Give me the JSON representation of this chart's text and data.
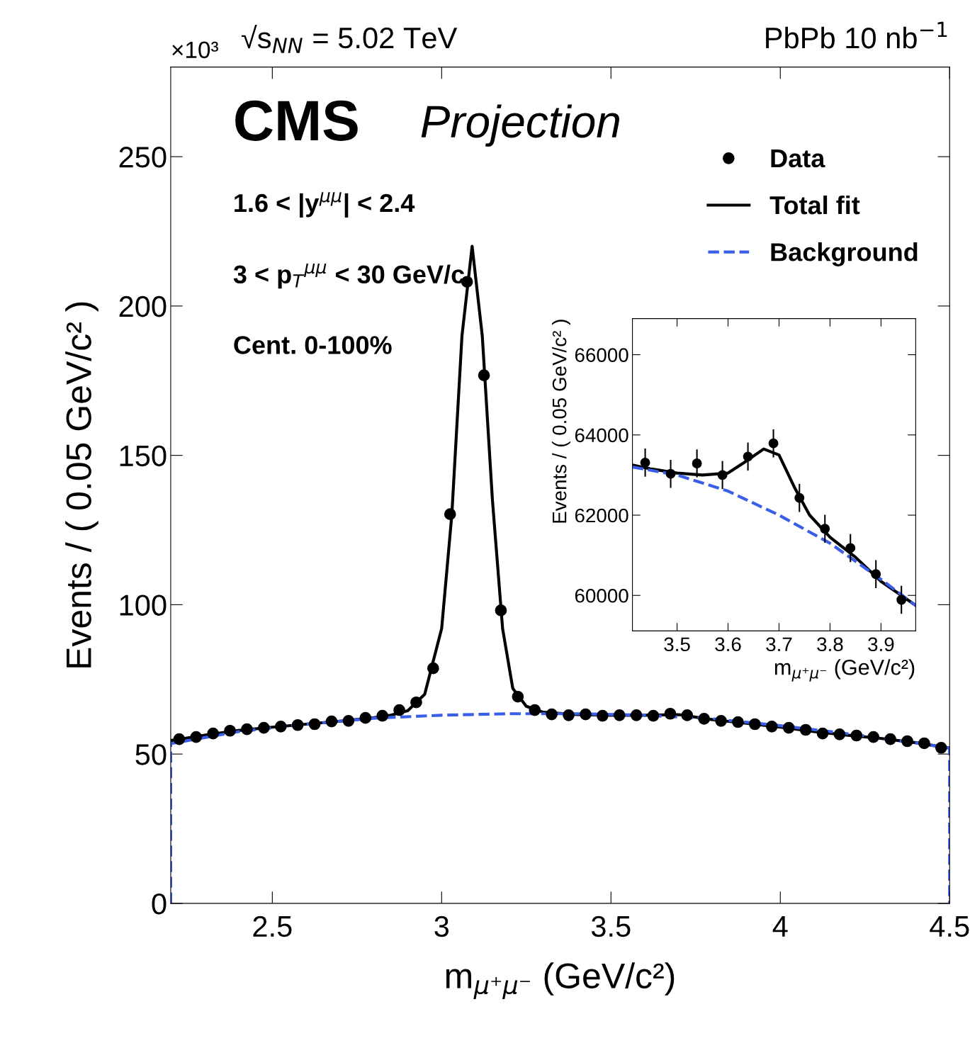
{
  "chart_data": [
    {
      "type": "line",
      "title": "√s$_{NN}$ = 5.02 TeV",
      "subtitle": "PbPb 10 nb$^{−1}$",
      "xlabel": "m$_{μ⁺μ⁻}$ (GeV/c²)",
      "ylabel": "Events / ( 0.05 GeV/c² )",
      "annotations": [
        "×10³",
        "CMS",
        "Projection",
        "1.6 < |y$^{μμ}$| < 2.4",
        "3 < p$_{T}$$^{μμ}$ < 30 GeV/c",
        "Cent. 0-100%"
      ],
      "xlim": [
        2.2,
        4.5
      ],
      "xticks": [
        2.5,
        3,
        3.5,
        4,
        4.5
      ],
      "ylim": [
        0,
        280
      ],
      "yticks": [
        0,
        50,
        100,
        150,
        200,
        250
      ],
      "grid": false,
      "legend": "top right",
      "series": [
        {
          "name": "Data",
          "type": "scatter",
          "marker": "circle",
          "color": "#000000",
          "x": [
            2.225,
            2.275,
            2.325,
            2.375,
            2.425,
            2.475,
            2.525,
            2.575,
            2.625,
            2.675,
            2.725,
            2.775,
            2.825,
            2.875,
            2.925,
            2.975,
            3.025,
            3.075,
            3.125,
            3.175,
            3.225,
            3.275,
            3.325,
            3.375,
            3.425,
            3.475,
            3.525,
            3.575,
            3.625,
            3.675,
            3.725,
            3.775,
            3.825,
            3.875,
            3.925,
            3.975,
            4.025,
            4.075,
            4.125,
            4.175,
            4.225,
            4.275,
            4.325,
            4.375,
            4.425,
            4.475
          ],
          "values": [
            55.0,
            55.7,
            56.9,
            57.8,
            58.3,
            58.8,
            59.2,
            59.7,
            60.0,
            60.9,
            61.1,
            62.1,
            62.8,
            64.7,
            67.3,
            78.7,
            130.3,
            208.1,
            176.8,
            98.1,
            69.2,
            64.7,
            63.3,
            63.0,
            63.3,
            62.8,
            63.0,
            63.0,
            62.8,
            63.5,
            63.0,
            61.8,
            61.1,
            60.7,
            60.0,
            59.2,
            58.8,
            58.1,
            56.9,
            56.6,
            56.2,
            55.7,
            55.0,
            54.3,
            53.6,
            52.1
          ]
        },
        {
          "name": "Total fit",
          "line_style": "solid",
          "color": "#000000",
          "x": [
            2.2,
            2.3,
            2.4,
            2.5,
            2.6,
            2.7,
            2.8,
            2.85,
            2.9,
            2.95,
            3.0,
            3.03,
            3.06,
            3.09,
            3.12,
            3.15,
            3.18,
            3.21,
            3.25,
            3.3,
            3.4,
            3.5,
            3.6,
            3.7,
            3.8,
            3.9,
            4.0,
            4.1,
            4.2,
            4.3,
            4.4,
            4.5
          ],
          "values": [
            54.5,
            56.3,
            57.9,
            59.0,
            60.0,
            61.0,
            62.2,
            63.0,
            64.5,
            70,
            92,
            130,
            190,
            220,
            190,
            135,
            92,
            72,
            66,
            64,
            63.2,
            63.0,
            63.0,
            63.2,
            61.5,
            60.3,
            59.0,
            57.5,
            56.3,
            55.2,
            53.8,
            52.0
          ]
        },
        {
          "name": "Background",
          "line_style": "dashed",
          "color": "#3a5ee8",
          "x": [
            2.2,
            2.2,
            2.4,
            2.6,
            2.8,
            3.0,
            3.2,
            3.4,
            3.6,
            3.8,
            4.0,
            4.2,
            4.4,
            4.5,
            4.5
          ],
          "values": [
            0,
            53.5,
            57.5,
            60.0,
            62.0,
            63.0,
            63.5,
            63.5,
            63.0,
            61.8,
            59.5,
            56.8,
            53.7,
            52.0,
            0
          ]
        }
      ]
    },
    {
      "type": "line",
      "xlabel": "m$_{μ⁺μ⁻}$ (GeV/c²)",
      "ylabel": "Events / ( 0.05 GeV/c² )",
      "xlim": [
        3.4125,
        3.968
      ],
      "xticks": [
        3.5,
        3.6,
        3.7,
        3.8,
        3.9
      ],
      "ylim": [
        59115,
        66900
      ],
      "yticks": [
        60000,
        62000,
        64000,
        66000
      ],
      "grid": false,
      "series": [
        {
          "type": "scatter",
          "marker": "circle",
          "color": "#000000",
          "x": [
            3.4375,
            3.4875,
            3.539,
            3.589,
            3.639,
            3.689,
            3.74,
            3.79,
            3.84,
            3.89,
            3.94
          ],
          "values": [
            63310,
            63030,
            63290,
            63000,
            63460,
            63790,
            62430,
            61660,
            61180,
            60530,
            59890
          ],
          "errors": [
            350,
            350,
            350,
            350,
            350,
            350,
            350,
            350,
            350,
            350,
            350
          ]
        },
        {
          "line_style": "solid",
          "color": "#000000",
          "x": [
            3.4125,
            3.45,
            3.5,
            3.55,
            3.6,
            3.63,
            3.67,
            3.7,
            3.73,
            3.76,
            3.8,
            3.85,
            3.9,
            3.968
          ],
          "values": [
            63250,
            63150,
            63050,
            63000,
            63050,
            63300,
            63650,
            63500,
            62700,
            62000,
            61450,
            60950,
            60350,
            59750
          ]
        },
        {
          "line_style": "dashed",
          "color": "#3a5ee8",
          "x": [
            3.4125,
            3.5,
            3.6,
            3.7,
            3.8,
            3.9,
            3.968
          ],
          "values": [
            63200,
            63000,
            62600,
            62000,
            61300,
            60400,
            59750
          ]
        }
      ]
    }
  ]
}
